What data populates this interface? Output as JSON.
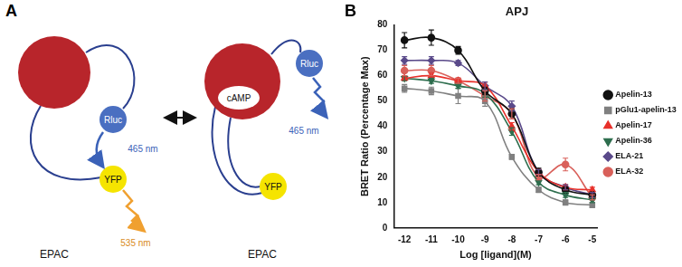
{
  "diagram": {
    "label": "A",
    "states": [
      {
        "protein": "EPAC",
        "donor": "Rluc",
        "acceptor": "YFP",
        "donor_emission": "465 nm",
        "acceptor_emission": "535 nm"
      },
      {
        "protein": "EPAC",
        "ligand": "cAMP",
        "donor": "Rluc",
        "acceptor": "YFP",
        "donor_emission": "465 nm"
      }
    ]
  },
  "chart_data": {
    "type": "line",
    "panel_label": "B",
    "title": "APJ",
    "x_label": "Log [ligand](M)",
    "y_label": "BRET Ratio (Percentage Max)",
    "x": [
      -12,
      -11,
      -10,
      -9,
      -8,
      -7,
      -6,
      -5
    ],
    "xlim": [
      -12.4,
      -4.8
    ],
    "xticks": [
      -12,
      -11,
      -10,
      -9,
      -8,
      -7,
      -6,
      -5
    ],
    "ylim": [
      0,
      80
    ],
    "yticks": [
      0,
      10,
      20,
      30,
      40,
      50,
      60,
      70,
      80
    ],
    "legend": "right",
    "grid": false,
    "series": [
      {
        "name": "Apelin-13",
        "color": "#111111",
        "marker": "circle",
        "values": [
          74,
          75,
          70,
          54,
          45,
          22,
          15,
          13
        ],
        "errors": [
          3,
          3,
          1.5,
          1.5,
          2,
          1.5,
          1,
          1
        ]
      },
      {
        "name": "pGlu1-apelin-13",
        "color": "#808080",
        "marker": "square",
        "values": [
          55,
          54,
          52,
          50,
          28,
          15,
          10,
          9
        ],
        "errors": [
          1.5,
          1.5,
          3,
          2,
          1,
          1,
          1,
          1
        ]
      },
      {
        "name": "Apelin-17",
        "color": "#e8312b",
        "marker": "triangle",
        "values": [
          59,
          60,
          58,
          56,
          40,
          22,
          16,
          15
        ],
        "errors": [
          1,
          1,
          1,
          1.5,
          1.5,
          1,
          1,
          1
        ]
      },
      {
        "name": "Apelin-36",
        "color": "#2e6e4e",
        "marker": "triangle-down",
        "values": [
          59,
          58,
          56,
          53,
          38,
          18,
          13,
          11
        ],
        "errors": [
          1,
          1,
          1,
          1.5,
          1.5,
          1,
          1,
          1
        ]
      },
      {
        "name": "ELA-21",
        "color": "#5a4a8a",
        "marker": "diamond",
        "values": [
          66,
          66,
          65,
          56,
          48,
          22,
          16,
          13
        ],
        "errors": [
          1.5,
          1.5,
          1,
          1.5,
          2,
          1,
          1,
          1
        ]
      },
      {
        "name": "ELA-32",
        "color": "#d9605a",
        "marker": "circle",
        "values": [
          62,
          62,
          58,
          52,
          45,
          20,
          25,
          12
        ],
        "errors": [
          2,
          2,
          1,
          2,
          2,
          1,
          2.5,
          1
        ]
      }
    ]
  }
}
